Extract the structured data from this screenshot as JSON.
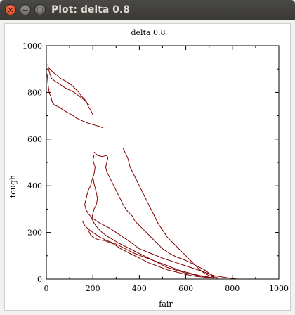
{
  "window": {
    "title": "Plot: delta 0.8"
  },
  "chart_data": {
    "type": "line",
    "title": "delta 0.8",
    "xlabel": "fair",
    "ylabel": "tough",
    "xlim": [
      0,
      1000
    ],
    "ylim": [
      0,
      1000
    ],
    "xticks": [
      0,
      200,
      400,
      600,
      800,
      1000
    ],
    "yticks": [
      0,
      200,
      400,
      600,
      800,
      1000
    ],
    "grid": false,
    "line_color": "#800000",
    "series": [
      {
        "values": [
          [
            5,
            920
          ],
          [
            10,
            905
          ],
          [
            20,
            895
          ],
          [
            30,
            885
          ],
          [
            45,
            875
          ],
          [
            60,
            860
          ],
          [
            80,
            850
          ],
          [
            95,
            840
          ],
          [
            110,
            830
          ],
          [
            125,
            815
          ],
          [
            140,
            800
          ],
          [
            150,
            785
          ],
          [
            165,
            770
          ],
          [
            175,
            755
          ],
          [
            180,
            740
          ],
          [
            190,
            725
          ],
          [
            200,
            705
          ]
        ]
      },
      {
        "values": [
          [
            8,
            905
          ],
          [
            15,
            880
          ],
          [
            22,
            860
          ],
          [
            35,
            850
          ],
          [
            50,
            840
          ],
          [
            65,
            830
          ],
          [
            80,
            820
          ],
          [
            100,
            810
          ],
          [
            120,
            800
          ],
          [
            140,
            785
          ],
          [
            160,
            770
          ],
          [
            175,
            755
          ],
          [
            185,
            745
          ]
        ]
      },
      {
        "values": [
          [
            3,
            880
          ],
          [
            5,
            860
          ],
          [
            8,
            830
          ],
          [
            12,
            800
          ],
          [
            20,
            780
          ],
          [
            25,
            760
          ],
          [
            35,
            745
          ],
          [
            50,
            740
          ],
          [
            65,
            730
          ],
          [
            80,
            720
          ],
          [
            100,
            710
          ],
          [
            115,
            700
          ],
          [
            130,
            690
          ],
          [
            150,
            680
          ],
          [
            175,
            670
          ],
          [
            200,
            662
          ],
          [
            225,
            655
          ],
          [
            245,
            648
          ]
        ]
      },
      {
        "values": [
          [
            205,
            530
          ],
          [
            200,
            510
          ],
          [
            210,
            480
          ],
          [
            205,
            450
          ],
          [
            195,
            420
          ],
          [
            190,
            400
          ],
          [
            180,
            380
          ],
          [
            175,
            360
          ],
          [
            170,
            340
          ],
          [
            165,
            320
          ],
          [
            170,
            300
          ],
          [
            180,
            280
          ],
          [
            200,
            260
          ],
          [
            230,
            240
          ],
          [
            270,
            220
          ],
          [
            300,
            200
          ],
          [
            330,
            180
          ],
          [
            360,
            160
          ],
          [
            400,
            130
          ],
          [
            450,
            110
          ],
          [
            500,
            90
          ],
          [
            560,
            70
          ],
          [
            620,
            50
          ],
          [
            680,
            30
          ],
          [
            720,
            15
          ],
          [
            780,
            5
          ],
          [
            820,
            0
          ],
          [
            900,
            0
          ],
          [
            1000,
            0
          ]
        ]
      },
      {
        "values": [
          [
            205,
            545
          ],
          [
            220,
            530
          ],
          [
            240,
            525
          ],
          [
            260,
            530
          ],
          [
            265,
            520
          ],
          [
            260,
            500
          ],
          [
            255,
            480
          ],
          [
            260,
            460
          ],
          [
            270,
            440
          ],
          [
            280,
            420
          ],
          [
            290,
            400
          ],
          [
            300,
            380
          ],
          [
            310,
            360
          ],
          [
            320,
            340
          ],
          [
            335,
            310
          ],
          [
            350,
            290
          ],
          [
            370,
            270
          ],
          [
            380,
            250
          ],
          [
            400,
            230
          ],
          [
            420,
            210
          ],
          [
            440,
            190
          ],
          [
            460,
            170
          ],
          [
            480,
            150
          ],
          [
            500,
            130
          ],
          [
            530,
            110
          ],
          [
            560,
            95
          ],
          [
            600,
            80
          ],
          [
            640,
            60
          ],
          [
            680,
            40
          ],
          [
            700,
            25
          ],
          [
            720,
            10
          ],
          [
            740,
            5
          ]
        ]
      },
      {
        "values": [
          [
            330,
            560
          ],
          [
            340,
            540
          ],
          [
            350,
            520
          ],
          [
            360,
            480
          ],
          [
            380,
            440
          ],
          [
            400,
            400
          ],
          [
            420,
            360
          ],
          [
            440,
            320
          ],
          [
            460,
            280
          ],
          [
            480,
            240
          ],
          [
            500,
            210
          ],
          [
            520,
            180
          ],
          [
            540,
            160
          ],
          [
            560,
            140
          ],
          [
            580,
            120
          ],
          [
            600,
            100
          ],
          [
            620,
            80
          ],
          [
            640,
            60
          ],
          [
            660,
            40
          ],
          [
            680,
            25
          ],
          [
            700,
            15
          ],
          [
            720,
            8
          ]
        ]
      },
      {
        "values": [
          [
            155,
            250
          ],
          [
            165,
            230
          ],
          [
            180,
            215
          ],
          [
            200,
            200
          ],
          [
            230,
            180
          ],
          [
            260,
            165
          ],
          [
            300,
            150
          ],
          [
            340,
            130
          ],
          [
            380,
            110
          ],
          [
            420,
            95
          ],
          [
            460,
            80
          ],
          [
            500,
            65
          ],
          [
            540,
            50
          ],
          [
            580,
            35
          ],
          [
            620,
            25
          ],
          [
            660,
            15
          ],
          [
            700,
            8
          ],
          [
            740,
            3
          ]
        ]
      },
      {
        "values": [
          [
            180,
            210
          ],
          [
            190,
            190
          ],
          [
            200,
            180
          ],
          [
            220,
            170
          ],
          [
            250,
            165
          ],
          [
            290,
            150
          ],
          [
            320,
            130
          ],
          [
            360,
            110
          ],
          [
            400,
            90
          ],
          [
            440,
            70
          ],
          [
            480,
            55
          ],
          [
            520,
            40
          ],
          [
            560,
            30
          ],
          [
            600,
            20
          ],
          [
            640,
            12
          ],
          [
            680,
            8
          ],
          [
            720,
            4
          ]
        ]
      },
      {
        "values": [
          [
            200,
            440
          ],
          [
            205,
            410
          ],
          [
            210,
            390
          ],
          [
            215,
            370
          ],
          [
            220,
            345
          ],
          [
            215,
            320
          ],
          [
            205,
            300
          ],
          [
            200,
            280
          ],
          [
            195,
            260
          ],
          [
            205,
            240
          ],
          [
            220,
            220
          ],
          [
            240,
            200
          ],
          [
            260,
            185
          ],
          [
            285,
            170
          ],
          [
            310,
            155
          ],
          [
            340,
            140
          ],
          [
            370,
            125
          ],
          [
            400,
            110
          ],
          [
            430,
            95
          ],
          [
            460,
            80
          ],
          [
            490,
            65
          ],
          [
            520,
            50
          ],
          [
            560,
            38
          ],
          [
            600,
            26
          ],
          [
            650,
            16
          ],
          [
            700,
            8
          ]
        ]
      }
    ]
  }
}
